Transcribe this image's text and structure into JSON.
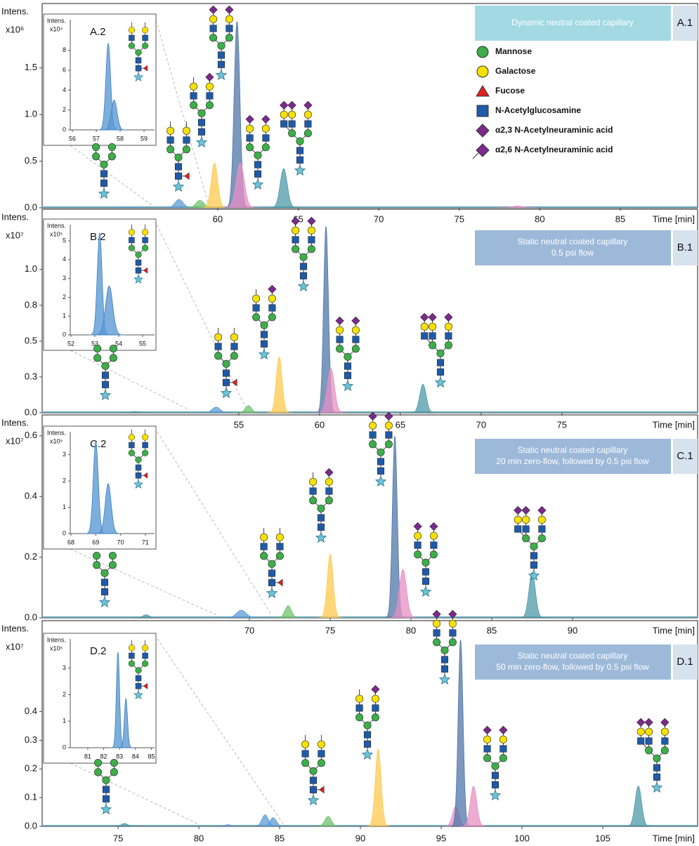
{
  "chart_data": [
    {
      "type": "area",
      "panel_label": "A.1",
      "banner": [
        "Dynamic neutral coated capillary"
      ],
      "banner_color": "#a3d9e3",
      "y_label": "Intens.",
      "y_multiplier": "x10⁶",
      "x_label": "Time [min]",
      "xlim": [
        49.1,
        89.8
      ],
      "xticks": [
        60,
        65,
        70,
        75,
        80,
        85
      ],
      "ylim": [
        0,
        2.19
      ],
      "yticks": [
        {
          "value": 0,
          "label": "0.0"
        },
        0.5,
        {
          "value": 1,
          "label": "1.0"
        },
        1.5
      ],
      "peaks": [
        {
          "color": "#5b9bd5",
          "center": 54.6,
          "height": 0.01,
          "width": 0.2
        },
        {
          "color": "#5b9bd5",
          "center": 57.6,
          "height": 0.09,
          "width": 0.25
        },
        {
          "color": "#6dc36d",
          "center": 58.9,
          "height": 0.08,
          "width": 0.25
        },
        {
          "color": "#ffc94d",
          "center": 59.8,
          "height": 0.48,
          "width": 0.2
        },
        {
          "color": "#4f76a8",
          "center": 61.2,
          "height": 2.0,
          "width": 0.18
        },
        {
          "color": "#e78fc3",
          "center": 61.4,
          "height": 0.48,
          "width": 0.25
        },
        {
          "color": "#4d9aa8",
          "center": 64.1,
          "height": 0.42,
          "width": 0.22
        },
        {
          "color": "#e78fc3",
          "center": 78.6,
          "height": 0.02,
          "width": 0.3
        }
      ],
      "inset": {
        "label": "A.2",
        "y_label": "Intens.",
        "y_multiplier": "x10⁴",
        "xlim": [
          55.91,
          59.44
        ],
        "xticks": [
          56,
          57,
          58,
          59
        ],
        "ylim": [
          0,
          11.1
        ],
        "yticks": [
          0,
          2,
          4,
          6,
          8
        ],
        "peaks": [
          {
            "color": "#5b9bd5",
            "center": 57.5,
            "height": 8.7,
            "width": 0.1
          },
          {
            "color": "#5b9bd5",
            "center": 57.75,
            "height": 3,
            "width": 0.12
          }
        ]
      },
      "legend": [
        {
          "name": "Mannose",
          "color": "#3dae49",
          "shape": "circle"
        },
        {
          "name": "Galactose",
          "color": "#f5e000",
          "shape": "circle"
        },
        {
          "name": "Fucose",
          "color": "#e02020",
          "shape": "triangle"
        },
        {
          "name": "N-Acetylglucosamine",
          "color": "#1f5aa8",
          "shape": "square"
        },
        {
          "name": "α2,3 N-Acetylneuraminic acid",
          "color": "#7b2a8c",
          "shape": "diamond"
        },
        {
          "name": "α2,6 N-Acetylneuraminic acid",
          "color": "#7b2a8c",
          "shape": "diamond-line"
        }
      ]
    },
    {
      "type": "area",
      "panel_label": "B.1",
      "banner": [
        "Static neutral coated capillary",
        "0.5 psi flow"
      ],
      "banner_color": "#9db9d9",
      "y_label": "Intens.",
      "y_multiplier": "x10⁷",
      "x_label": "Time [min]",
      "xlim": [
        42.83,
        83.4
      ],
      "xticks": [
        55,
        60,
        65,
        70,
        75
      ],
      "ylim": [
        0,
        1.42
      ],
      "yticks": [
        {
          "value": 0,
          "label": "0.0"
        },
        {
          "value": 0.25,
          "label": "0.3"
        },
        0.5,
        {
          "value": 0.75,
          "label": "0.8"
        },
        {
          "value": 1,
          "label": "1.0"
        }
      ],
      "peaks": [
        {
          "color": "#4d9aa8",
          "center": 48.6,
          "height": 0.01,
          "width": 0.2
        },
        {
          "color": "#5b9bd5",
          "center": 53.6,
          "height": 0.04,
          "width": 0.25
        },
        {
          "color": "#6dc36d",
          "center": 55.6,
          "height": 0.05,
          "width": 0.2
        },
        {
          "color": "#ffc94d",
          "center": 57.5,
          "height": 0.39,
          "width": 0.18
        },
        {
          "color": "#4f76a8",
          "center": 60.4,
          "height": 1.3,
          "width": 0.15
        },
        {
          "color": "#e78fc3",
          "center": 60.7,
          "height": 0.31,
          "width": 0.22
        },
        {
          "color": "#4d9aa8",
          "center": 66.4,
          "height": 0.2,
          "width": 0.2
        }
      ],
      "inset": {
        "label": "B.2",
        "y_label": "Intens.",
        "y_multiplier": "x10⁵",
        "xlim": [
          51.97,
          55.5
        ],
        "xticks": [
          52,
          53,
          54,
          55
        ],
        "ylim": [
          0,
          5.86
        ],
        "yticks": [
          0,
          1,
          2,
          3,
          4,
          5
        ],
        "peaks": [
          {
            "color": "#5b9bd5",
            "center": 53.2,
            "height": 5.4,
            "width": 0.1
          },
          {
            "color": "#5b9bd5",
            "center": 53.6,
            "height": 2.6,
            "width": 0.15
          }
        ]
      }
    },
    {
      "type": "area",
      "panel_label": "C.1",
      "banner": [
        "Static neutral coated capillary",
        "20 min zero-flow, followed by 0.5 psi flow"
      ],
      "banner_color": "#9db9d9",
      "y_label": "Intens.",
      "y_multiplier": "x10⁷",
      "x_label": "Time [min]",
      "xlim": [
        57.17,
        97.74
      ],
      "xticks": [
        70,
        75,
        80,
        85,
        90
      ],
      "ylim": [
        0,
        0.669
      ],
      "yticks": [
        {
          "value": 0,
          "label": "0.0"
        },
        0.2,
        0.4,
        0.6
      ],
      "peaks": [
        {
          "color": "#4d9aa8",
          "center": 63.6,
          "height": 0.01,
          "width": 0.2
        },
        {
          "color": "#5b9bd5",
          "center": 69.5,
          "height": 0.025,
          "width": 0.3
        },
        {
          "color": "#6dc36d",
          "center": 72.4,
          "height": 0.04,
          "width": 0.2
        },
        {
          "color": "#ffc94d",
          "center": 75.0,
          "height": 0.21,
          "width": 0.18
        },
        {
          "color": "#4f76a8",
          "center": 79.0,
          "height": 0.6,
          "width": 0.15
        },
        {
          "color": "#e78fc3",
          "center": 79.5,
          "height": 0.16,
          "width": 0.22
        },
        {
          "color": "#4d9aa8",
          "center": 87.5,
          "height": 0.15,
          "width": 0.2
        }
      ],
      "inset": {
        "label": "C.2",
        "y_label": "Intens.",
        "y_multiplier": "x10⁵",
        "xlim": [
          67.97,
          71.37
        ],
        "xticks": [
          68,
          69,
          70,
          71
        ],
        "ylim": [
          0,
          3.87
        ],
        "yticks": [
          0,
          1,
          2,
          3
        ],
        "peaks": [
          {
            "color": "#5b9bd5",
            "center": 69.0,
            "height": 3.5,
            "width": 0.1
          },
          {
            "color": "#5b9bd5",
            "center": 69.5,
            "height": 1.9,
            "width": 0.12
          }
        ]
      }
    },
    {
      "type": "area",
      "panel_label": "D.1",
      "banner": [
        "Static neutral coated capillary",
        "50 min zero-flow, followed by 0.5 psi flow"
      ],
      "banner_color": "#9db9d9",
      "y_label": "Intens.",
      "y_multiplier": "x10⁷",
      "x_label": "Time [min]",
      "xlim": [
        70.3,
        110.87
      ],
      "xticks": [
        75,
        80,
        85,
        90,
        95,
        100,
        105
      ],
      "ylim": [
        0,
        0.717
      ],
      "yticks": [
        {
          "value": 0,
          "label": "0.0"
        },
        0.1,
        0.2,
        0.3,
        0.4
      ],
      "peaks": [
        {
          "color": "#4d9aa8",
          "center": 75.4,
          "height": 0.01,
          "width": 0.2
        },
        {
          "color": "#5b9bd5",
          "center": 81.8,
          "height": 0.006,
          "width": 0.2
        },
        {
          "color": "#5b9bd5",
          "center": 84.1,
          "height": 0.04,
          "width": 0.2
        },
        {
          "color": "#5b9bd5",
          "center": 84.6,
          "height": 0.03,
          "width": 0.2
        },
        {
          "color": "#6dc36d",
          "center": 88.0,
          "height": 0.035,
          "width": 0.2
        },
        {
          "color": "#ffc94d",
          "center": 91.1,
          "height": 0.27,
          "width": 0.18
        },
        {
          "color": "#e78fc3",
          "center": 95.9,
          "height": 0.07,
          "width": 0.2
        },
        {
          "color": "#4f76a8",
          "center": 96.2,
          "height": 0.65,
          "width": 0.15
        },
        {
          "color": "#e78fc3",
          "center": 97.0,
          "height": 0.14,
          "width": 0.2
        },
        {
          "color": "#4d9aa8",
          "center": 107.2,
          "height": 0.14,
          "width": 0.2
        }
      ],
      "inset": {
        "label": "D.2",
        "y_label": "Intens.",
        "y_multiplier": "x10⁵",
        "xlim": [
          79.9,
          85.2
        ],
        "xticks": [
          81,
          82,
          83,
          84,
          85
        ],
        "ylim": [
          0,
          4.1
        ],
        "yticks": [
          0,
          1,
          2,
          3
        ],
        "peaks": [
          {
            "color": "#5b9bd5",
            "center": 82.9,
            "height": 3.6,
            "width": 0.1
          },
          {
            "color": "#5b9bd5",
            "center": 83.4,
            "height": 1.85,
            "width": 0.1
          }
        ]
      }
    }
  ]
}
